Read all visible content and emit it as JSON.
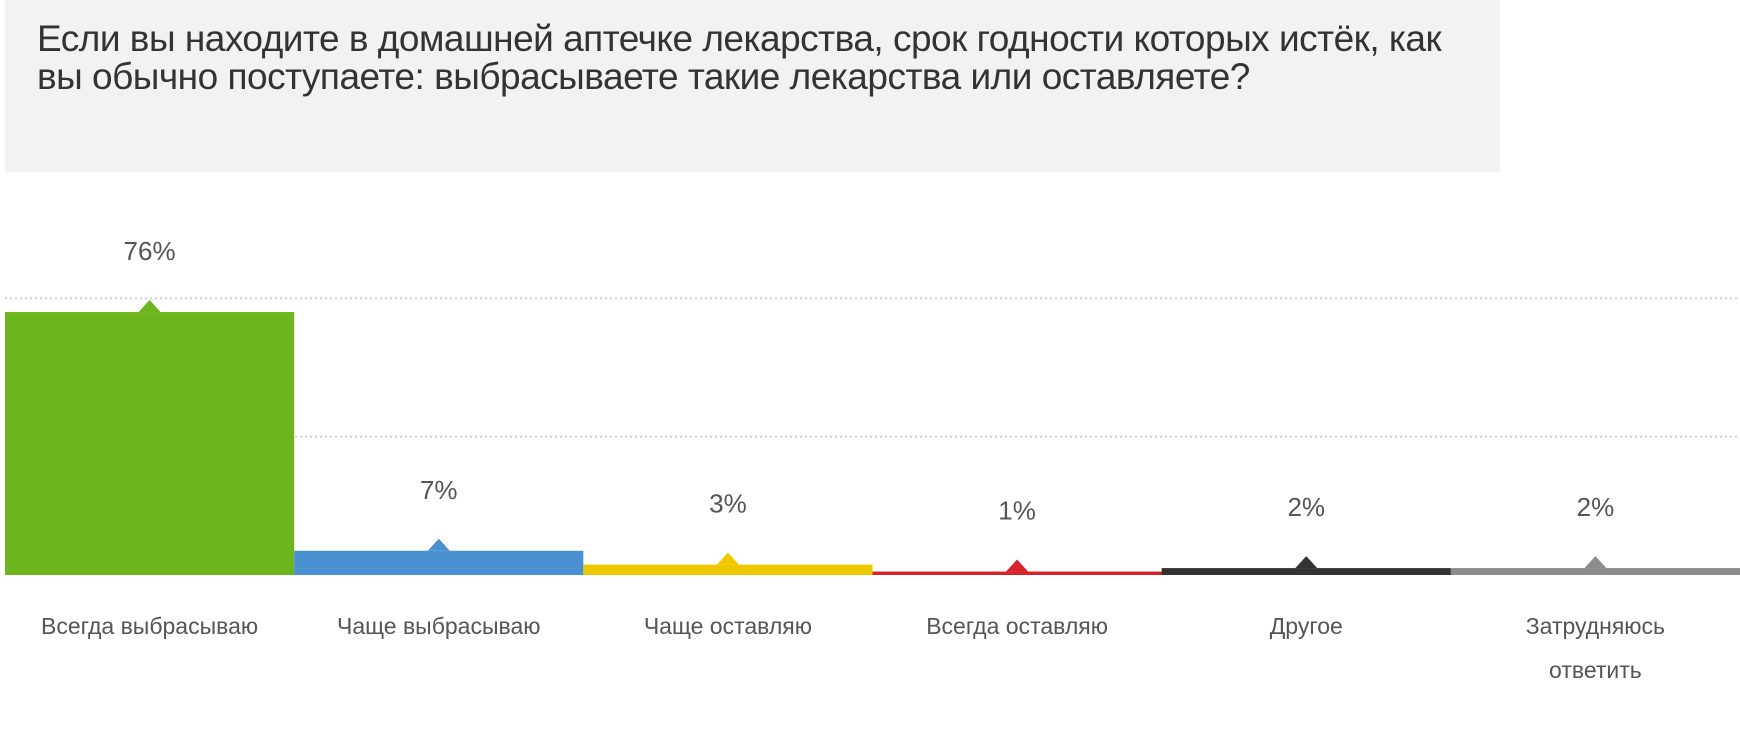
{
  "chart_data": {
    "type": "bar",
    "title": "Если вы находите в домашней аптечке лекарства, срок годности которых истёк, как вы обычно поступаете: выбрасываете такие лекарства или оставляете?",
    "categories": [
      "Всегда выбрасываю",
      "Чаще выбрасываю",
      "Чаще оставляю",
      "Всегда оставляю",
      "Другое",
      "Затрудняюсь ответить"
    ],
    "values": [
      76,
      7,
      3,
      1,
      2,
      2
    ],
    "value_labels": [
      "76%",
      "7%",
      "3%",
      "1%",
      "2%",
      "2%"
    ],
    "colors": [
      "#6db51f",
      "#4a8fd0",
      "#f0c800",
      "#d9232a",
      "#333333",
      "#8c8c8c"
    ],
    "ylim": [
      0,
      100
    ],
    "yticks": [
      40,
      80
    ],
    "grid": true
  }
}
